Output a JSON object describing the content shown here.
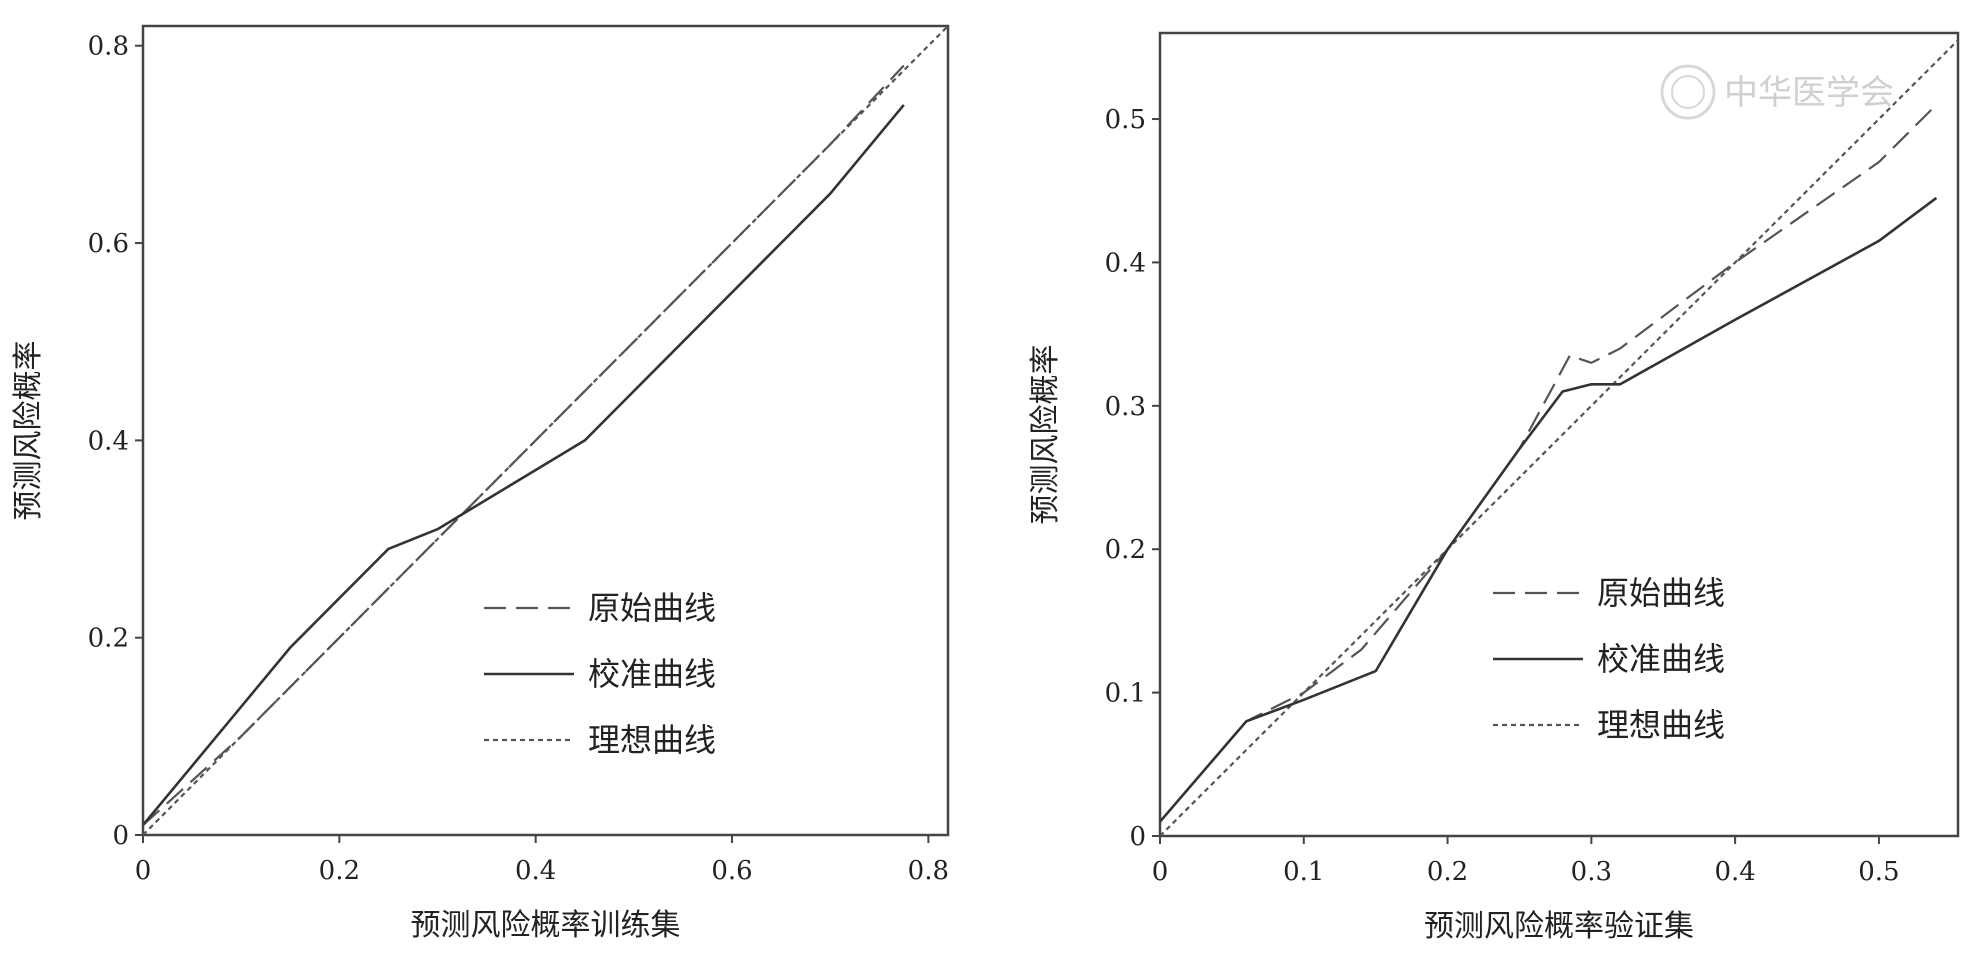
{
  "chart_data": [
    {
      "type": "line",
      "xlabel": "预测风险概率训练集",
      "ylabel": "预测风险概率",
      "xlim": [
        0,
        0.82
      ],
      "ylim": [
        0,
        0.82
      ],
      "xticks": [
        "0",
        "0.2",
        "0.4",
        "0.6",
        "0.8"
      ],
      "yticks": [
        "0",
        "0.2",
        "0.4",
        "0.6",
        "0.8"
      ],
      "grid": false,
      "legend_position": "center-right",
      "series": [
        {
          "name": "原始曲线",
          "style": "dashed",
          "color": "#555555",
          "x": [
            0,
            0.1,
            0.2,
            0.3,
            0.4,
            0.5,
            0.6,
            0.7,
            0.775
          ],
          "y": [
            0.01,
            0.1,
            0.2,
            0.3,
            0.4,
            0.5,
            0.6,
            0.7,
            0.78
          ]
        },
        {
          "name": "校准曲线",
          "style": "solid",
          "color": "#333333",
          "x": [
            0,
            0.05,
            0.1,
            0.15,
            0.2,
            0.25,
            0.3,
            0.35,
            0.4,
            0.45,
            0.5,
            0.6,
            0.7,
            0.775
          ],
          "y": [
            0.01,
            0.07,
            0.13,
            0.19,
            0.24,
            0.29,
            0.31,
            0.34,
            0.37,
            0.4,
            0.45,
            0.55,
            0.65,
            0.74
          ]
        },
        {
          "name": "理想曲线",
          "style": "dotted",
          "color": "#555555",
          "x": [
            0,
            0.82
          ],
          "y": [
            0,
            0.82
          ]
        }
      ]
    },
    {
      "type": "line",
      "xlabel": "预测风险概率验证集",
      "ylabel": "预测风险概率",
      "xlim": [
        0,
        0.555
      ],
      "ylim": [
        0,
        0.56
      ],
      "xticks": [
        "0",
        "0.1",
        "0.2",
        "0.3",
        "0.4",
        "0.5"
      ],
      "yticks": [
        "0",
        "0.1",
        "0.2",
        "0.3",
        "0.4",
        "0.5"
      ],
      "grid": false,
      "legend_position": "center-right",
      "series": [
        {
          "name": "原始曲线",
          "style": "dashed",
          "color": "#555555",
          "x": [
            0,
            0.06,
            0.1,
            0.14,
            0.2,
            0.25,
            0.285,
            0.3,
            0.32,
            0.4,
            0.5,
            0.54
          ],
          "y": [
            0.01,
            0.08,
            0.1,
            0.13,
            0.2,
            0.27,
            0.335,
            0.33,
            0.34,
            0.4,
            0.47,
            0.51
          ]
        },
        {
          "name": "校准曲线",
          "style": "solid",
          "color": "#333333",
          "x": [
            0,
            0.06,
            0.1,
            0.15,
            0.2,
            0.25,
            0.28,
            0.3,
            0.32,
            0.4,
            0.5,
            0.54
          ],
          "y": [
            0.01,
            0.08,
            0.095,
            0.115,
            0.2,
            0.27,
            0.31,
            0.315,
            0.315,
            0.36,
            0.415,
            0.445
          ]
        },
        {
          "name": "理想曲线",
          "style": "dotted",
          "color": "#555555",
          "x": [
            0,
            0.555
          ],
          "y": [
            0,
            0.555
          ]
        }
      ]
    }
  ],
  "watermark": {
    "text": "中华医学会"
  }
}
